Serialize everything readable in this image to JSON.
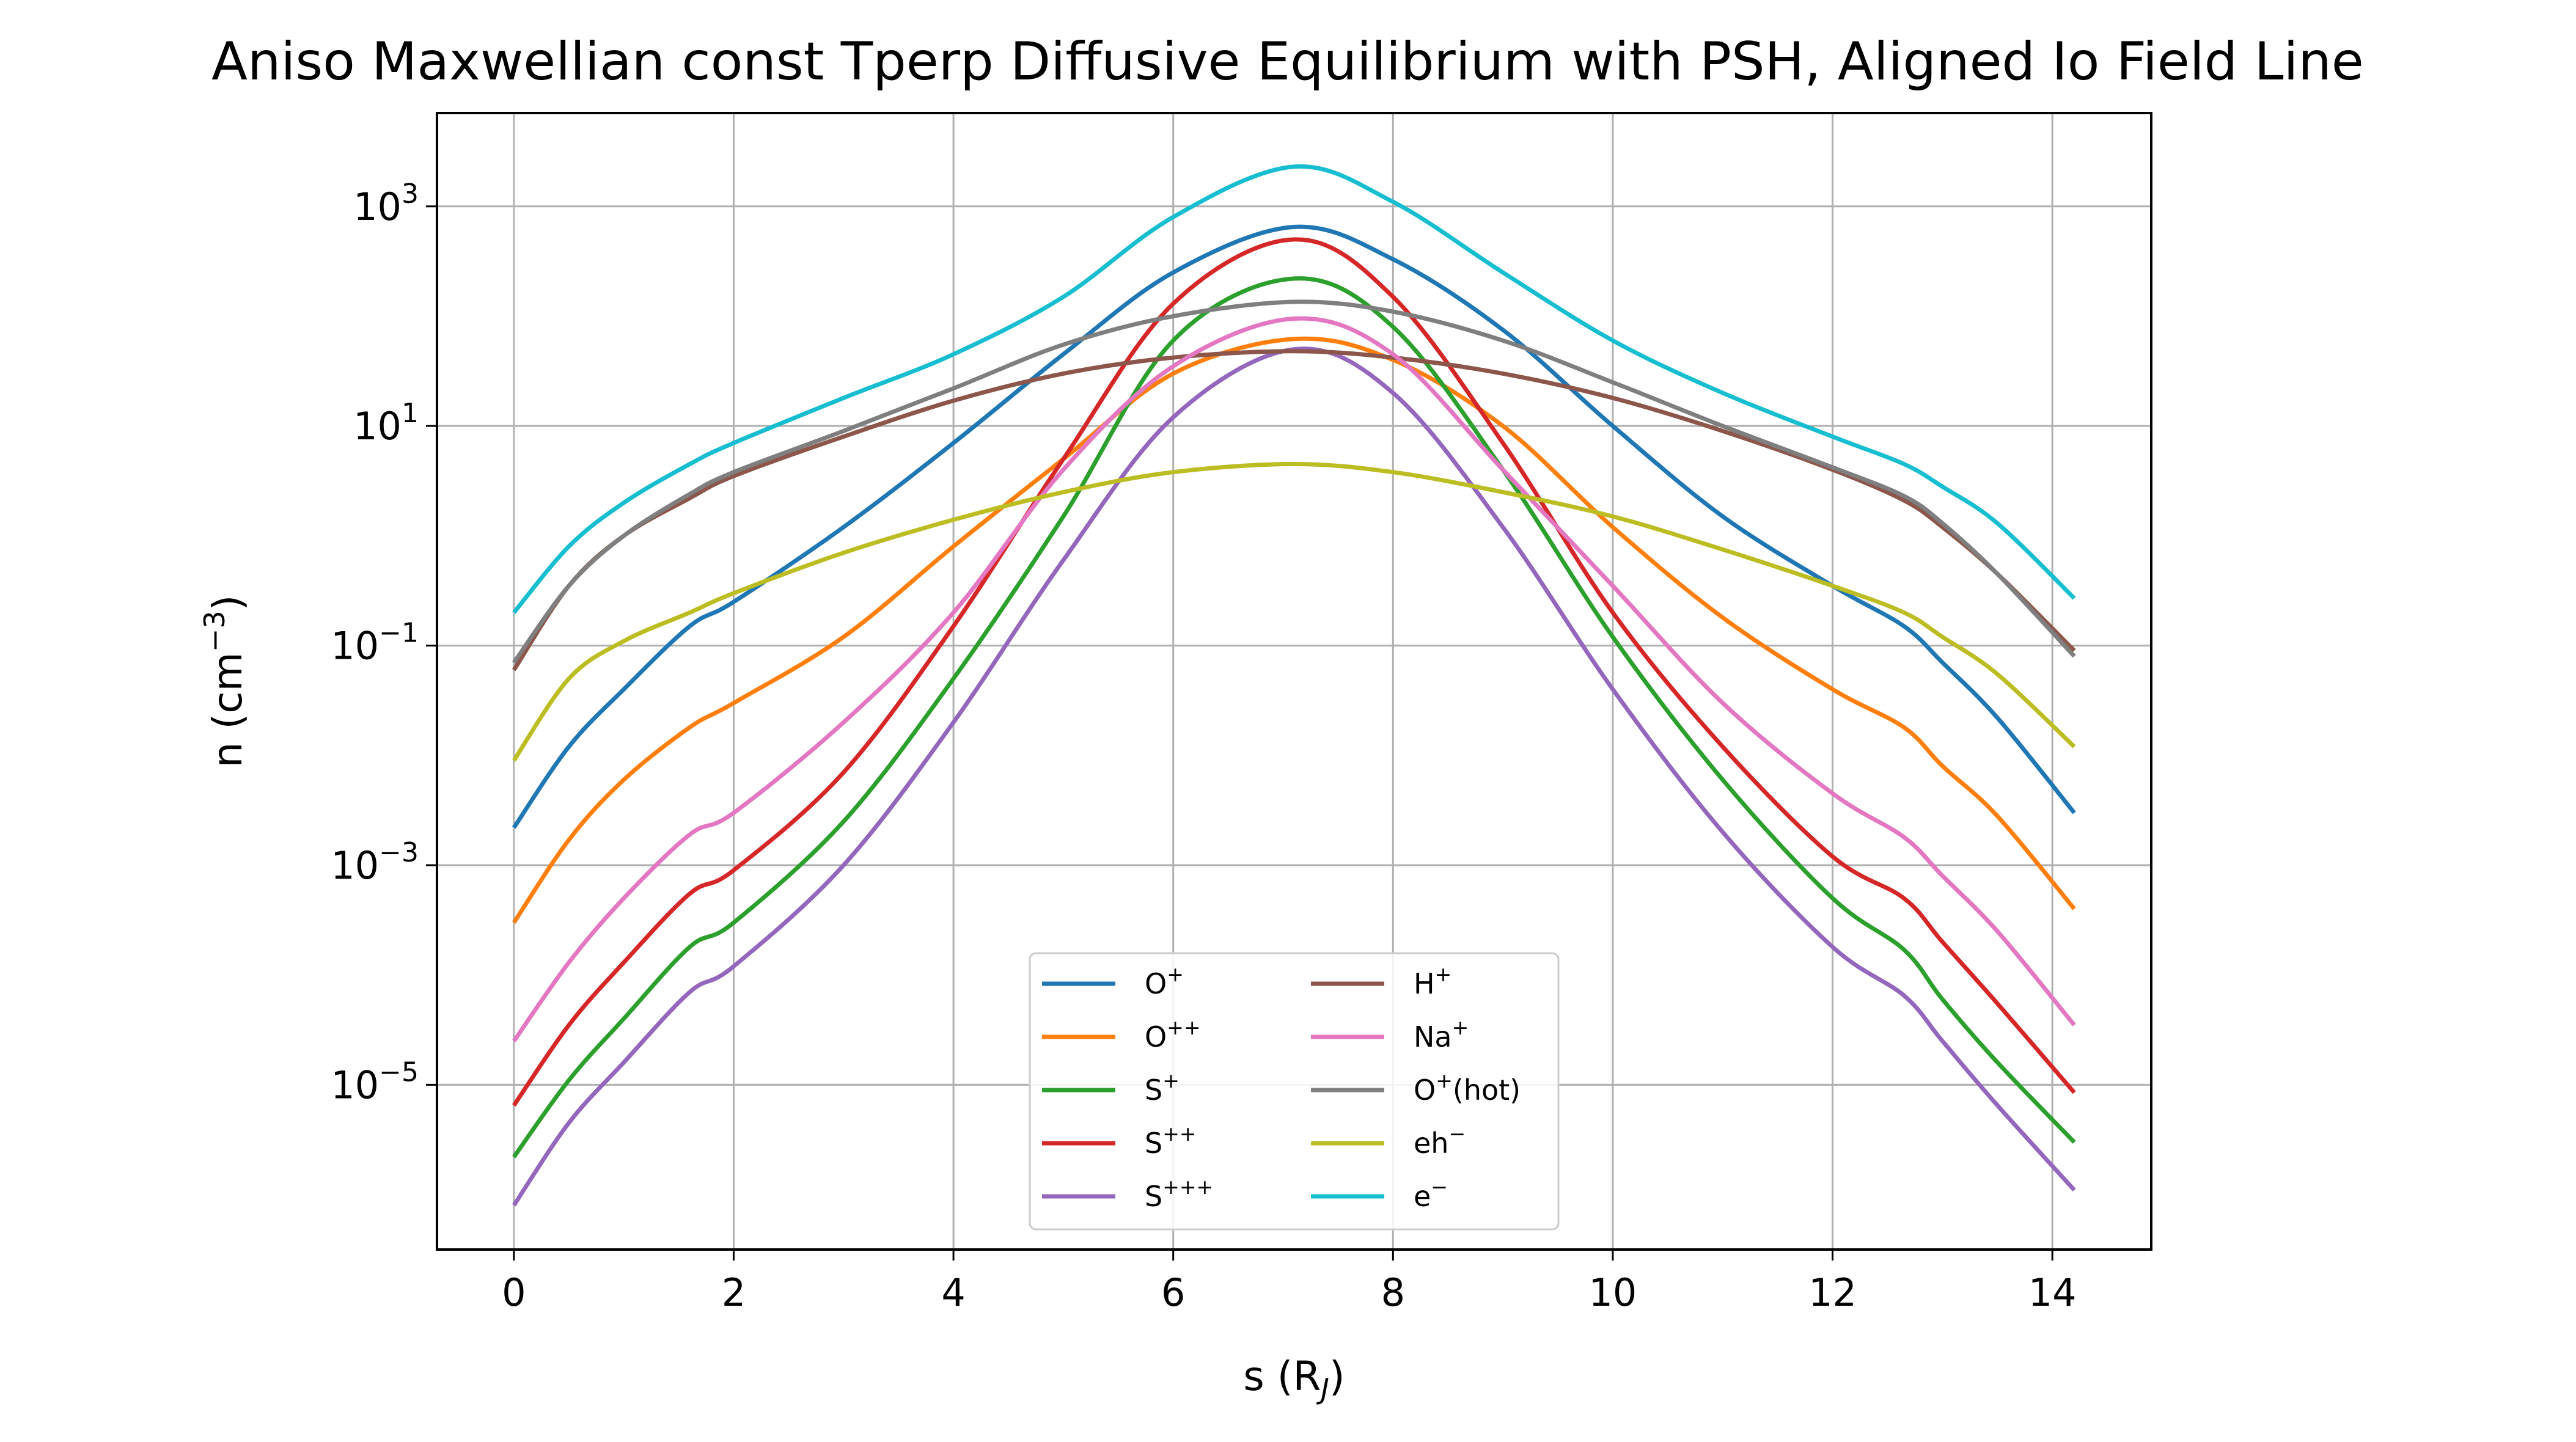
{
  "chart_data": {
    "type": "line",
    "title": "Aniso Maxwellian const Tperp Diffusive Equilibrium with PSH, Aligned Io Field Line",
    "xlabel": "s (R_J)",
    "ylabel": "n (cm^-3)",
    "xlim": [
      -0.7,
      14.9
    ],
    "ylim_log10": [
      -6.5,
      3.85
    ],
    "yscale": "log",
    "grid": true,
    "legend_position": "lower center",
    "xticks": [
      0,
      2,
      4,
      6,
      8,
      10,
      12,
      14
    ],
    "xtick_labels": [
      "0",
      "2",
      "4",
      "6",
      "8",
      "10",
      "12",
      "14"
    ],
    "yticks_log10": [
      3,
      1,
      -1,
      -3,
      -5
    ],
    "ytick_labels": [
      {
        "base": "10",
        "exp": "3"
      },
      {
        "base": "10",
        "exp": "1"
      },
      {
        "base": "10",
        "exp": "−1"
      },
      {
        "base": "10",
        "exp": "−3"
      },
      {
        "base": "10",
        "exp": "−5"
      }
    ],
    "x": [
      0,
      0.5,
      1.0,
      1.6,
      2.0,
      3.0,
      4.0,
      5.0,
      6.0,
      7.1,
      8.0,
      9.0,
      10.0,
      11.0,
      12.0,
      12.65,
      13.0,
      13.5,
      14.2
    ],
    "series": [
      {
        "name": "O+",
        "label_base": "O",
        "label_sup": "+",
        "color": "#1f77b4",
        "values": [
          0.0022,
          0.012,
          0.04,
          0.15,
          0.25,
          1.2,
          7,
          45,
          250,
          650,
          330,
          75,
          10,
          1.5,
          0.35,
          0.15,
          0.07,
          0.022,
          0.003
        ]
      },
      {
        "name": "O++",
        "label_base": "O",
        "label_sup": "++",
        "color": "#ff7f0e",
        "values": [
          0.0003,
          0.0017,
          0.006,
          0.018,
          0.03,
          0.12,
          0.8,
          5,
          30,
          62,
          40,
          10,
          1.2,
          0.18,
          0.04,
          0.018,
          0.008,
          0.0028,
          0.0004
        ]
      },
      {
        "name": "S+",
        "label_base": "S",
        "label_sup": "+",
        "color": "#2ca02c",
        "values": [
          2.2e-06,
          1.1e-05,
          4e-05,
          0.00018,
          0.0003,
          0.0025,
          0.05,
          1.5,
          60,
          220,
          80,
          4,
          0.12,
          0.006,
          0.0005,
          0.00017,
          6e-05,
          1.6e-05,
          3e-06
        ]
      },
      {
        "name": "S++",
        "label_base": "S",
        "label_sup": "++",
        "color": "#d62728",
        "values": [
          6.5e-06,
          3.5e-05,
          0.00013,
          0.00055,
          0.0009,
          0.007,
          0.15,
          5,
          130,
          500,
          150,
          7,
          0.2,
          0.012,
          0.0012,
          0.0005,
          0.0002,
          5.5e-05,
          8.5e-06
        ]
      },
      {
        "name": "S+++",
        "label_base": "S",
        "label_sup": "+++",
        "color": "#9467bd",
        "values": [
          8e-07,
          4.5e-06,
          1.6e-05,
          7e-05,
          0.00012,
          0.001,
          0.02,
          0.6,
          12,
          50,
          20,
          1.2,
          0.04,
          0.002,
          0.00018,
          6.5e-05,
          2.5e-05,
          6.5e-06,
          1.1e-06
        ]
      },
      {
        "name": "H+",
        "label_base": "H",
        "label_sup": "+",
        "color": "#8c564b",
        "values": [
          0.06,
          0.35,
          1.0,
          2.2,
          3.5,
          8,
          17,
          30,
          42,
          48,
          42,
          30,
          18,
          9,
          4,
          2.1,
          1.2,
          0.45,
          0.09
        ]
      },
      {
        "name": "Na+",
        "label_base": "Na",
        "label_sup": "+",
        "color": "#e377c2",
        "values": [
          2.5e-05,
          0.00013,
          0.0005,
          0.0019,
          0.003,
          0.02,
          0.2,
          4,
          35,
          95,
          45,
          4,
          0.35,
          0.03,
          0.0045,
          0.0018,
          0.0008,
          0.00025,
          3.5e-05
        ]
      },
      {
        "name": "O+(hot)",
        "label_base": "O",
        "label_sup": "+",
        "label_suffix": "(hot)",
        "color": "#7f7f7f",
        "values": [
          0.07,
          0.35,
          1.0,
          2.4,
          3.8,
          9,
          22,
          55,
          100,
          135,
          110,
          60,
          25,
          10,
          4.2,
          2.3,
          1.3,
          0.45,
          0.08
        ]
      },
      {
        "name": "eh-",
        "label_base": "eh",
        "label_sup": "−",
        "color": "#bcbd22",
        "values": [
          0.009,
          0.05,
          0.11,
          0.2,
          0.3,
          0.7,
          1.4,
          2.5,
          3.8,
          4.5,
          3.8,
          2.5,
          1.5,
          0.75,
          0.35,
          0.2,
          0.12,
          0.055,
          0.012
        ]
      },
      {
        "name": "e-",
        "label_base": "e",
        "label_sup": "−",
        "color": "#17becf",
        "values": [
          0.2,
          0.8,
          2.0,
          4.5,
          7,
          18,
          45,
          150,
          800,
          2300,
          1100,
          250,
          60,
          20,
          8,
          4.5,
          2.8,
          1.3,
          0.27
        ]
      }
    ]
  }
}
